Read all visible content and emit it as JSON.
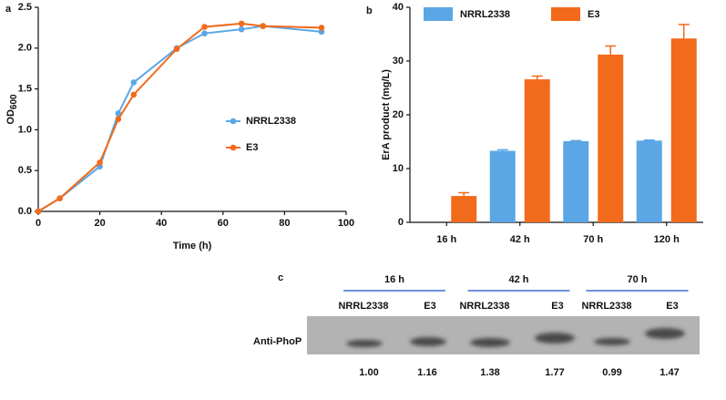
{
  "chart_data": [
    {
      "type": "line",
      "panel": "a",
      "x_label": "Time (h)",
      "y_label": "OD",
      "y_label_subscript": "600",
      "x": [
        0,
        7,
        20,
        26,
        31,
        45,
        54,
        66,
        73,
        92
      ],
      "series": [
        {
          "name": "NRRL2338",
          "color": "#5ba7e6",
          "values": [
            0,
            0.16,
            0.55,
            1.2,
            1.58,
            2.0,
            2.18,
            2.23,
            2.27,
            2.2
          ]
        },
        {
          "name": "E3",
          "color": "#f26a1b",
          "values": [
            0,
            0.16,
            0.6,
            1.13,
            1.43,
            1.99,
            2.26,
            2.3,
            2.27,
            2.25
          ]
        }
      ],
      "xlim": [
        0,
        100
      ],
      "xticks": [
        0,
        20,
        40,
        60,
        80,
        100
      ],
      "ylim": [
        0,
        2.5
      ],
      "yticks": [
        {
          "value": 0,
          "label": "0.0"
        },
        0.5,
        {
          "value": 1,
          "label": "1.0"
        },
        1.5,
        {
          "value": 2,
          "label": "2.0"
        },
        2.5
      ]
    },
    {
      "type": "bar",
      "panel": "b",
      "y_label": "ErA product (mg/L)",
      "categories": [
        "16 h",
        "42 h",
        "70 h",
        "120 h"
      ],
      "series": [
        {
          "name": "NRRL2338",
          "color": "#5ba7e6",
          "values": [
            null,
            13.3,
            15.1,
            15.2
          ],
          "errors": [
            null,
            0.2,
            0.1,
            0.1
          ]
        },
        {
          "name": "E3",
          "color": "#f26a1b",
          "values": [
            4.9,
            26.6,
            31.2,
            34.2
          ],
          "errors": [
            0.6,
            0.6,
            1.6,
            2.6
          ]
        }
      ],
      "ylim": [
        0,
        40
      ],
      "yticks": [
        0,
        10,
        20,
        30,
        40
      ]
    }
  ],
  "blot": {
    "panel": "c",
    "row_label": "Anti-PhoP",
    "groups": [
      {
        "label": "16 h",
        "lanes": [
          "NRRL2338",
          "E3"
        ],
        "values": [
          "1.00",
          "1.16"
        ]
      },
      {
        "label": "42 h",
        "lanes": [
          "NRRL2338",
          "E3"
        ],
        "values": [
          "1.38",
          "1.77"
        ]
      },
      {
        "label": "70 h",
        "lanes": [
          "NRRL2338",
          "E3"
        ],
        "values": [
          "0.99",
          "1.47"
        ]
      }
    ]
  }
}
